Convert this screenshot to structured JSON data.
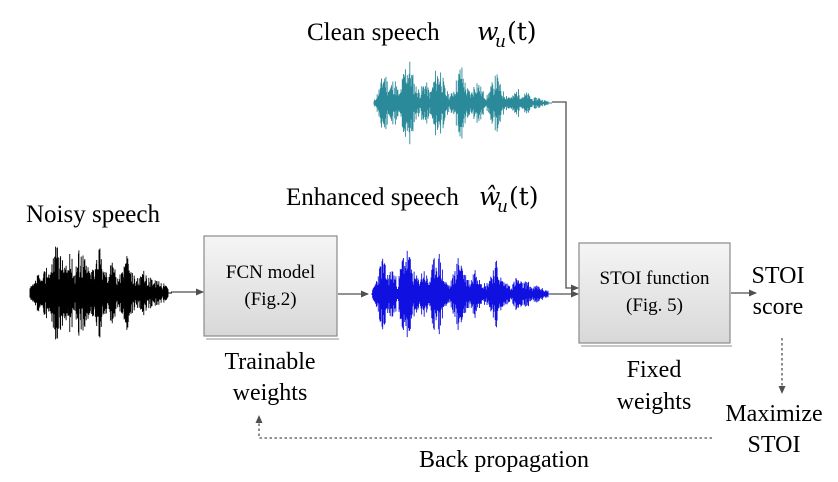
{
  "labels": {
    "clean_speech": "Clean speech",
    "clean_symbol": "w",
    "clean_sub": "u",
    "clean_arg": "(t)",
    "enhanced_speech": "Enhanced speech",
    "enhanced_symbol": "ŵ",
    "enhanced_sub": "u",
    "enhanced_arg": "(t)",
    "noisy_speech": "Noisy speech",
    "fcn_line1": "FCN model",
    "fcn_line2": "(Fig.2)",
    "stoi_line1": "STOI function",
    "stoi_line2": "(Fig. 5)",
    "trainable_line1": "Trainable",
    "trainable_line2": "weights",
    "fixed_line1": "Fixed",
    "fixed_line2": "weights",
    "score_line1": "STOI",
    "score_line2": "score",
    "maximize_line1": "Maximize",
    "maximize_line2": "STOI",
    "back_propagation": "Back propagation"
  },
  "colors": {
    "clean_wave": "#2a8a9a",
    "enhanced_wave": "#1010e0",
    "noisy_wave": "#000000",
    "box_fill_top": "#f4f4f4",
    "box_fill_bottom": "#dcdcdc",
    "box_stroke": "#8a8a8a",
    "arrow": "#505050"
  },
  "waveforms": {
    "clean": [
      0.05,
      0.35,
      0.8,
      0.4,
      0.6,
      0.2,
      0.9,
      1.0,
      0.45,
      0.3,
      0.55,
      0.25,
      0.75,
      0.85,
      0.3,
      0.2,
      0.5,
      0.95,
      0.4,
      0.25,
      0.6,
      0.35,
      0.15,
      0.45,
      0.7,
      0.3,
      0.2,
      0.15,
      0.35,
      0.2,
      0.25,
      0.1,
      0.15,
      0.08,
      0.05
    ],
    "enhanced": [
      0.05,
      0.4,
      0.85,
      0.45,
      0.6,
      0.25,
      0.95,
      1.0,
      0.5,
      0.35,
      0.6,
      0.3,
      0.8,
      0.9,
      0.35,
      0.2,
      0.55,
      0.95,
      0.45,
      0.3,
      0.65,
      0.4,
      0.2,
      0.5,
      0.75,
      0.35,
      0.25,
      0.2,
      0.4,
      0.25,
      0.3,
      0.15,
      0.2,
      0.12,
      0.08
    ],
    "noisy": [
      0.12,
      0.2,
      0.4,
      0.3,
      0.6,
      0.45,
      0.9,
      1.0,
      0.7,
      0.55,
      0.85,
      0.5,
      0.95,
      0.9,
      0.6,
      0.45,
      0.75,
      1.0,
      0.55,
      0.45,
      0.7,
      0.5,
      0.4,
      0.6,
      0.8,
      0.45,
      0.35,
      0.3,
      0.45,
      0.3,
      0.35,
      0.25,
      0.3,
      0.2,
      0.15
    ]
  }
}
